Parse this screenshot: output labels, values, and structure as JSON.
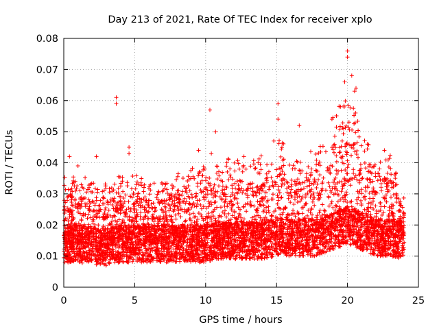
{
  "chart_data": {
    "type": "scatter",
    "title": "Day 213 of 2021, Rate Of TEC Index for receiver xplo",
    "xlabel": "GPS time / hours",
    "ylabel": "ROTI / TECUs",
    "xlim": [
      0,
      25
    ],
    "ylim": [
      0,
      0.08
    ],
    "x_ticks": [
      0,
      5,
      10,
      15,
      20,
      25
    ],
    "x_tick_labels": [
      "0",
      "5",
      "10",
      "15",
      "20",
      "25"
    ],
    "y_ticks": [
      0,
      0.01,
      0.02,
      0.03,
      0.04,
      0.05,
      0.06,
      0.07,
      0.08
    ],
    "y_tick_labels": [
      "0",
      "0.01",
      "0.02",
      "0.03",
      "0.04",
      "0.05",
      "0.06",
      "0.07",
      "0.08"
    ],
    "grid": true,
    "marker": "+",
    "series_color": "#ff0000",
    "envelope": {
      "x": [
        0,
        1,
        2,
        3,
        4,
        5,
        6,
        7,
        8,
        9,
        10,
        11,
        12,
        13,
        14,
        15,
        16,
        17,
        18,
        19,
        20,
        21,
        22,
        23,
        24
      ],
      "median": [
        0.014,
        0.014,
        0.013,
        0.013,
        0.014,
        0.014,
        0.014,
        0.014,
        0.014,
        0.014,
        0.014,
        0.015,
        0.015,
        0.015,
        0.015,
        0.016,
        0.016,
        0.016,
        0.016,
        0.018,
        0.02,
        0.018,
        0.016,
        0.016,
        0.015
      ],
      "upper": [
        0.03,
        0.03,
        0.028,
        0.028,
        0.03,
        0.03,
        0.028,
        0.028,
        0.03,
        0.032,
        0.032,
        0.033,
        0.035,
        0.033,
        0.035,
        0.04,
        0.035,
        0.035,
        0.038,
        0.045,
        0.05,
        0.042,
        0.035,
        0.035,
        0.025
      ]
    },
    "outliers": [
      {
        "x": 0.4,
        "y": 0.042
      },
      {
        "x": 1.0,
        "y": 0.039
      },
      {
        "x": 2.3,
        "y": 0.042
      },
      {
        "x": 3.7,
        "y": 0.061
      },
      {
        "x": 3.7,
        "y": 0.059
      },
      {
        "x": 4.6,
        "y": 0.045
      },
      {
        "x": 4.6,
        "y": 0.043
      },
      {
        "x": 9.5,
        "y": 0.044
      },
      {
        "x": 10.3,
        "y": 0.057
      },
      {
        "x": 10.4,
        "y": 0.043
      },
      {
        "x": 10.7,
        "y": 0.05
      },
      {
        "x": 12.7,
        "y": 0.042
      },
      {
        "x": 13.7,
        "y": 0.04
      },
      {
        "x": 14.8,
        "y": 0.047
      },
      {
        "x": 15.1,
        "y": 0.059
      },
      {
        "x": 15.1,
        "y": 0.054
      },
      {
        "x": 16.6,
        "y": 0.052
      },
      {
        "x": 18.9,
        "y": 0.054
      },
      {
        "x": 19.5,
        "y": 0.058
      },
      {
        "x": 19.8,
        "y": 0.066
      },
      {
        "x": 20.0,
        "y": 0.076
      },
      {
        "x": 20.0,
        "y": 0.074
      },
      {
        "x": 20.3,
        "y": 0.068
      },
      {
        "x": 20.5,
        "y": 0.063
      },
      {
        "x": 20.6,
        "y": 0.064
      },
      {
        "x": 21.4,
        "y": 0.046
      },
      {
        "x": 22.6,
        "y": 0.044
      }
    ]
  }
}
